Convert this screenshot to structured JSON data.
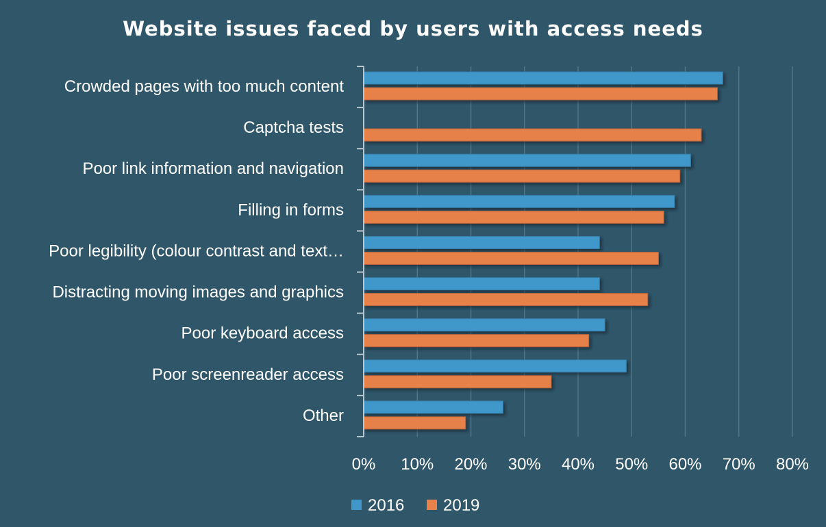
{
  "chart_data": {
    "type": "bar",
    "orientation": "horizontal",
    "title": "Website issues faced by users with access needs",
    "categories": [
      "Crowded pages with too much content",
      "Captcha tests",
      "Poor link information and navigation",
      "Filling in forms",
      "Poor legibility (colour contrast and text…",
      "Distracting moving images and graphics",
      "Poor keyboard access",
      "Poor screenreader access",
      "Other"
    ],
    "series": [
      {
        "name": "2016",
        "color": "#4197c9",
        "values": [
          67,
          null,
          61,
          58,
          44,
          44,
          45,
          49,
          26
        ]
      },
      {
        "name": "2019",
        "color": "#e6824a",
        "values": [
          66,
          63,
          59,
          56,
          55,
          53,
          42,
          35,
          19
        ]
      }
    ],
    "xlim": [
      0,
      80
    ],
    "xticks": [
      "0%",
      "10%",
      "20%",
      "30%",
      "40%",
      "50%",
      "60%",
      "70%",
      "80%"
    ],
    "grid": true,
    "legend_placement": "bottom",
    "unit": "%"
  }
}
